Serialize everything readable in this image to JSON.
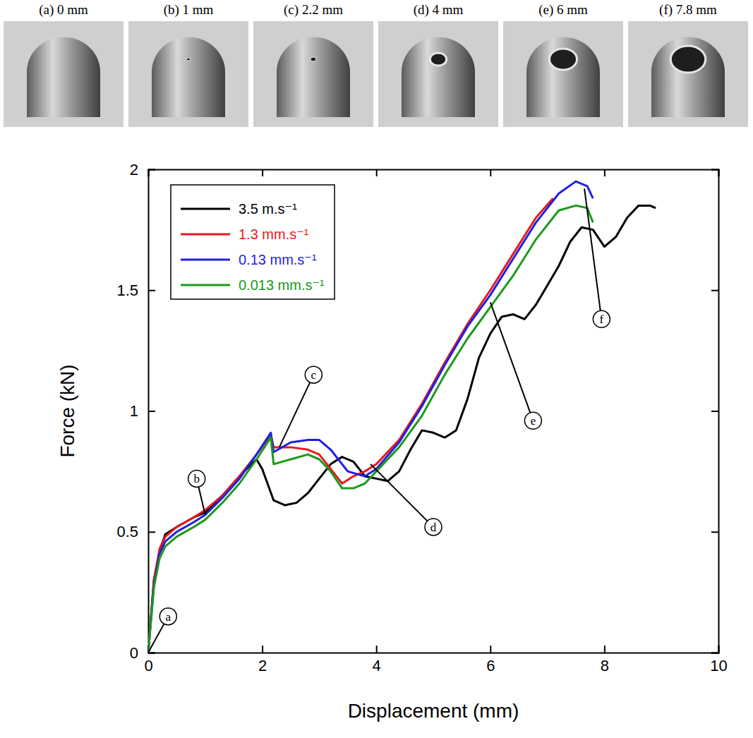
{
  "chart_data": {
    "type": "line",
    "photo_captions": [
      "(a) 0 mm",
      "(b) 1 mm",
      "(c) 2.2 mm",
      "(d) 4 mm",
      "(e) 6 mm",
      "(f) 7.8 mm"
    ],
    "x_label": "Displacement (mm)",
    "y_label": "Force (kN)",
    "xlim": [
      0,
      10
    ],
    "xticks": [
      0,
      2,
      4,
      6,
      8,
      10
    ],
    "ylim": [
      0,
      2
    ],
    "yticks": [
      0,
      0.5,
      1,
      1.5,
      2
    ],
    "grid": false,
    "legend": "upper left",
    "series": [
      {
        "name": "3.5 m.s⁻¹",
        "color": "#000000",
        "x": [
          0,
          0.1,
          0.2,
          0.3,
          0.5,
          0.8,
          1.0,
          1.3,
          1.6,
          1.9,
          2.0,
          2.2,
          2.4,
          2.6,
          2.8,
          3.0,
          3.2,
          3.4,
          3.6,
          3.8,
          4.0,
          4.2,
          4.4,
          4.6,
          4.8,
          5.0,
          5.2,
          5.4,
          5.6,
          5.8,
          6.0,
          6.2,
          6.4,
          6.6,
          6.8,
          7.0,
          7.2,
          7.4,
          7.6,
          7.8,
          8.0,
          8.2,
          8.4,
          8.6,
          8.8,
          8.9
        ],
        "values": [
          0,
          0.3,
          0.42,
          0.49,
          0.52,
          0.56,
          0.58,
          0.65,
          0.73,
          0.8,
          0.76,
          0.63,
          0.61,
          0.62,
          0.66,
          0.72,
          0.78,
          0.81,
          0.79,
          0.73,
          0.72,
          0.71,
          0.75,
          0.84,
          0.92,
          0.91,
          0.89,
          0.92,
          1.05,
          1.22,
          1.32,
          1.39,
          1.4,
          1.38,
          1.44,
          1.52,
          1.6,
          1.7,
          1.76,
          1.75,
          1.68,
          1.72,
          1.8,
          1.85,
          1.85,
          1.84
        ]
      },
      {
        "name": "1.3 mm.s⁻¹",
        "color": "#e8191c",
        "x": [
          0,
          0.1,
          0.2,
          0.3,
          0.5,
          0.8,
          1.0,
          1.3,
          1.6,
          1.9,
          2.15,
          2.2,
          2.5,
          2.8,
          3.0,
          3.2,
          3.4,
          3.6,
          3.8,
          4.0,
          4.4,
          4.8,
          5.2,
          5.6,
          6.0,
          6.4,
          6.8,
          7.1
        ],
        "values": [
          0,
          0.3,
          0.43,
          0.48,
          0.52,
          0.56,
          0.59,
          0.65,
          0.73,
          0.82,
          0.9,
          0.85,
          0.85,
          0.84,
          0.82,
          0.76,
          0.7,
          0.73,
          0.75,
          0.78,
          0.88,
          1.03,
          1.2,
          1.36,
          1.5,
          1.65,
          1.8,
          1.88
        ]
      },
      {
        "name": "0.13 mm.s⁻¹",
        "color": "#1f1fe6",
        "x": [
          0,
          0.1,
          0.2,
          0.3,
          0.5,
          0.8,
          1.0,
          1.3,
          1.6,
          1.9,
          2.15,
          2.2,
          2.5,
          2.8,
          3.0,
          3.2,
          3.5,
          3.8,
          4.0,
          4.4,
          4.8,
          5.2,
          5.6,
          6.0,
          6.4,
          6.8,
          7.2,
          7.5,
          7.7,
          7.8
        ],
        "values": [
          0,
          0.28,
          0.41,
          0.46,
          0.5,
          0.54,
          0.57,
          0.64,
          0.72,
          0.82,
          0.91,
          0.83,
          0.87,
          0.88,
          0.88,
          0.84,
          0.75,
          0.73,
          0.76,
          0.87,
          1.02,
          1.19,
          1.35,
          1.48,
          1.63,
          1.78,
          1.9,
          1.95,
          1.93,
          1.88
        ]
      },
      {
        "name": "0.013 mm.s⁻¹",
        "color": "#1a9a1a",
        "x": [
          0,
          0.1,
          0.2,
          0.3,
          0.5,
          0.8,
          1.0,
          1.3,
          1.6,
          1.9,
          2.15,
          2.2,
          2.5,
          2.8,
          3.0,
          3.2,
          3.4,
          3.6,
          3.8,
          4.0,
          4.4,
          4.8,
          5.2,
          5.6,
          6.0,
          6.4,
          6.8,
          7.2,
          7.5,
          7.7,
          7.8
        ],
        "values": [
          0,
          0.27,
          0.39,
          0.44,
          0.48,
          0.52,
          0.55,
          0.62,
          0.7,
          0.8,
          0.89,
          0.78,
          0.8,
          0.82,
          0.8,
          0.75,
          0.68,
          0.68,
          0.7,
          0.75,
          0.85,
          0.98,
          1.15,
          1.3,
          1.43,
          1.56,
          1.71,
          1.83,
          1.85,
          1.84,
          1.78
        ]
      }
    ],
    "annotations": [
      {
        "label": "a",
        "x": 0,
        "y": 0,
        "text_x": 0.35,
        "text_y": 0.15
      },
      {
        "label": "b",
        "x": 1.0,
        "y": 0.57,
        "text_x": 0.85,
        "text_y": 0.72
      },
      {
        "label": "c",
        "x": 2.3,
        "y": 0.85,
        "text_x": 2.9,
        "text_y": 1.15
      },
      {
        "label": "d",
        "x": 3.9,
        "y": 0.78,
        "text_x": 5.0,
        "text_y": 0.52
      },
      {
        "label": "e",
        "x": 6.0,
        "y": 1.45,
        "text_x": 6.75,
        "text_y": 0.96
      },
      {
        "label": "f",
        "x": 7.65,
        "y": 1.92,
        "text_x": 7.95,
        "text_y": 1.38
      }
    ]
  }
}
